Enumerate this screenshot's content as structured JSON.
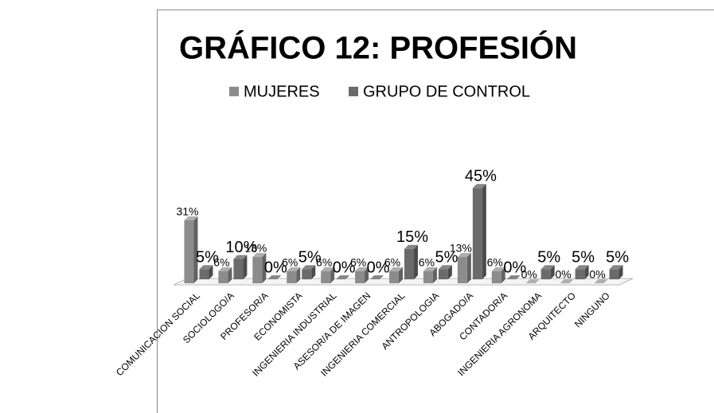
{
  "chart_data": {
    "type": "bar3d",
    "title": "GRÁFICO 12: PROFESIÓN",
    "categories": [
      "COMUNICACION SOCIAL",
      "SOCIOLOGO/A",
      "PROFESOR/A",
      "ECONOMISTA",
      "INGENIERIA INDUSTRIAL",
      "ASESOR/A DE IMAGEN",
      "INGENIERIA COMERCIAL",
      "ANTROPOLOGIA",
      "ABOGADO/A",
      "CONTADOR/A",
      "INGENIERIA AGRONOMA",
      "ARQUITECTO",
      "NINGUNO"
    ],
    "series": [
      {
        "name": "MUJERES",
        "color": "#8c8c8c",
        "values": [
          31,
          6,
          13,
          6,
          6,
          6,
          6,
          6,
          13,
          6,
          0,
          0,
          0
        ],
        "value_labels": [
          "31%",
          "6%",
          "13%",
          "6%",
          "6%",
          "6%",
          "6%",
          "6%",
          "13%",
          "6%",
          "0%",
          "0%",
          "0%"
        ]
      },
      {
        "name": "GRUPO DE CONTROL",
        "color": "#6b6b6b",
        "values": [
          5,
          10,
          0,
          5,
          0,
          0,
          15,
          5,
          45,
          0,
          5,
          5,
          5
        ],
        "value_labels": [
          "5%",
          "10%",
          "0%",
          "5%",
          "0%",
          "0%",
          "15%",
          "5%",
          "45%",
          "0%",
          "5%",
          "5%",
          "5%"
        ]
      }
    ],
    "legend": "top"
  }
}
